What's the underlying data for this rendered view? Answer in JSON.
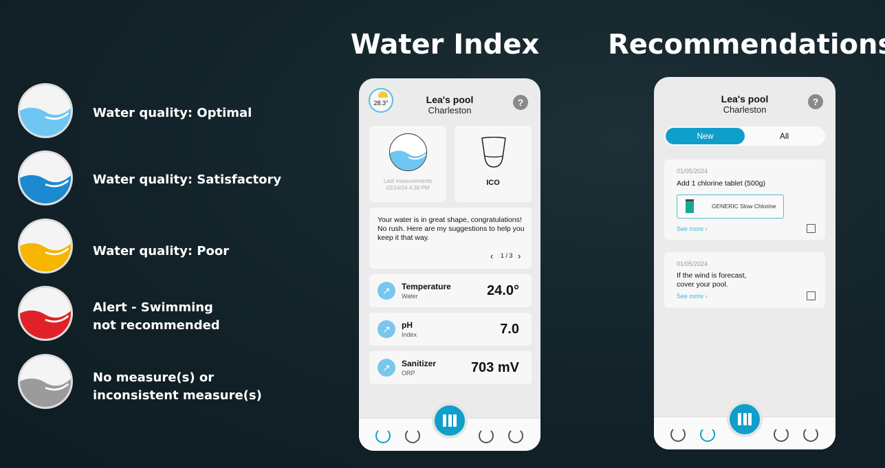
{
  "legend": [
    {
      "label": "Water quality: Optimal",
      "color": "#6ec6f2"
    },
    {
      "label": "Water quality: Satisfactory",
      "color": "#1b8ad0"
    },
    {
      "label": "Water quality: Poor",
      "color": "#f5b500"
    },
    {
      "label": "Alert - Swimming not recommended",
      "line1": "Alert - Swimming",
      "line2": "not recommended",
      "color": "#e02228"
    },
    {
      "label": "No measure(s) or inconsistent measure(s)",
      "line1": "No measure(s) or",
      "line2": "inconsistent measure(s)",
      "color": "#9b9b9b"
    }
  ],
  "titles": {
    "water_index": "Water Index",
    "recommendations": "Recommendations"
  },
  "accent": "#109fcb",
  "water_index": {
    "weather_temp": "28.3°",
    "pool_name": "Lea's pool",
    "city": "Charleston",
    "help": "?",
    "last_measurements_label": "Last measurements",
    "last_measurements_time": "02/24/24 4:38 PM",
    "device": "ICO",
    "message": "Your water is in great shape, congratulations! No rush. Here are my suggestions to help you keep it that way.",
    "pager": "1 / 3",
    "metrics": [
      {
        "label": "Temperature",
        "sub": "Water",
        "value": "24.0°"
      },
      {
        "label": "pH",
        "sub": "Index",
        "value": "7.0"
      },
      {
        "label": "Sanitizer",
        "sub": "ORP",
        "value": "703 mV"
      }
    ]
  },
  "recommendations": {
    "pool_name": "Lea's pool",
    "city": "Charleston",
    "help": "?",
    "tabs": [
      "New",
      "All"
    ],
    "items": [
      {
        "date": "01/05/2024",
        "text": "Add 1 chlorine tablet (500g)",
        "product": "GENERIC Slow Chlorine",
        "see_more": "See more  ›"
      },
      {
        "date": "01/05/2024",
        "text": "If the wind is forecast, cover your pool.",
        "line1": "If the wind is forecast,",
        "line2": "cover your pool.",
        "see_more": "See more  ›"
      }
    ]
  }
}
